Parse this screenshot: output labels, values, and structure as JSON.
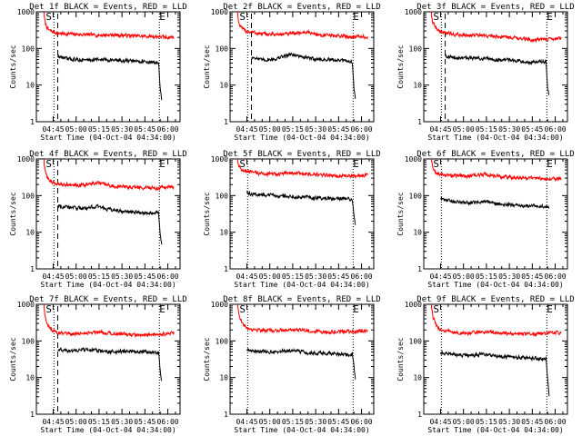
{
  "figure": {
    "xlabel": "Start Time (04-Oct-04 04:34:00)",
    "ylabel": "Counts/sec",
    "x_tick_labels": [
      "04:45",
      "05:00",
      "05:15",
      "05:30",
      "05:45",
      "06:00"
    ],
    "y_tick_labels": [
      "1",
      "10",
      "100",
      "1000"
    ],
    "start_marker": "S",
    "end_marker": "E"
  },
  "chart_data": [
    {
      "type": "line",
      "title": "Det 1f BLACK = Events, RED = LLD",
      "xlabel": "Start Time (04-Oct-04 04:34:00)",
      "ylabel": "Counts/sec",
      "ylim": [
        1,
        1000
      ],
      "yscale": "log",
      "x_unit": "minutes after 04:34:00",
      "xlim": [
        0,
        94
      ],
      "series": [
        {
          "color": "#000000",
          "x": [
            14,
            16,
            20,
            30,
            40,
            50,
            60,
            70,
            80,
            81,
            82
          ],
          "y": [
            60,
            58,
            52,
            48,
            50,
            48,
            46,
            44,
            40,
            8,
            4
          ]
        },
        {
          "color": "#ff0000",
          "x": [
            5,
            6,
            8,
            10,
            14,
            20,
            30,
            40,
            50,
            60,
            70,
            80,
            85,
            90
          ],
          "y": [
            800,
            450,
            320,
            290,
            260,
            250,
            240,
            230,
            235,
            225,
            215,
            210,
            200,
            205
          ]
        }
      ],
      "vlines": [
        {
          "x": 11.5,
          "style": "dotted"
        },
        {
          "x": 14,
          "style": "dashed"
        },
        {
          "x": 80.5,
          "style": "dotted"
        }
      ]
    },
    {
      "type": "line",
      "title": "Det 2f BLACK = Events, RED = LLD",
      "xlabel": "Start Time (04-Oct-04 04:34:00)",
      "ylabel": "Counts/sec",
      "ylim": [
        1,
        1000
      ],
      "yscale": "log",
      "x_unit": "minutes after 04:34:00",
      "xlim": [
        0,
        94
      ],
      "series": [
        {
          "color": "#000000",
          "x": [
            14,
            16,
            20,
            30,
            40,
            50,
            60,
            70,
            80,
            81,
            82
          ],
          "y": [
            55,
            58,
            48,
            52,
            70,
            55,
            50,
            48,
            44,
            8,
            4
          ]
        },
        {
          "color": "#ff0000",
          "x": [
            5,
            6,
            8,
            10,
            14,
            20,
            30,
            40,
            50,
            60,
            70,
            80,
            85,
            90
          ],
          "y": [
            800,
            450,
            340,
            300,
            280,
            250,
            240,
            250,
            280,
            230,
            220,
            210,
            210,
            200
          ]
        }
      ],
      "vlines": [
        {
          "x": 11.5,
          "style": "dotted"
        },
        {
          "x": 14,
          "style": "dashed"
        },
        {
          "x": 80.5,
          "style": "dotted"
        }
      ]
    },
    {
      "type": "line",
      "title": "Det 3f BLACK = Events, RED = LLD",
      "xlabel": "Start Time (04-Oct-04 04:34:00)",
      "ylabel": "Counts/sec",
      "ylim": [
        1,
        1000
      ],
      "yscale": "log",
      "x_unit": "minutes after 04:34:00",
      "xlim": [
        0,
        94
      ],
      "series": [
        {
          "color": "#000000",
          "x": [
            14,
            16,
            20,
            30,
            40,
            50,
            60,
            70,
            80,
            81,
            82
          ],
          "y": [
            65,
            60,
            55,
            55,
            52,
            50,
            48,
            42,
            44,
            8,
            5
          ]
        },
        {
          "color": "#ff0000",
          "x": [
            5,
            6,
            8,
            10,
            14,
            20,
            30,
            40,
            50,
            60,
            70,
            80,
            85,
            90
          ],
          "y": [
            800,
            500,
            350,
            300,
            270,
            240,
            230,
            220,
            210,
            200,
            170,
            180,
            185,
            190
          ]
        }
      ],
      "vlines": [
        {
          "x": 11.5,
          "style": "dotted"
        },
        {
          "x": 14,
          "style": "dashed"
        },
        {
          "x": 80.5,
          "style": "dotted"
        }
      ]
    },
    {
      "type": "line",
      "title": "Det 4f BLACK = Events, RED = LLD",
      "xlabel": "Start Time (04-Oct-04 04:34:00)",
      "ylabel": "Counts/sec",
      "ylim": [
        1,
        1000
      ],
      "yscale": "log",
      "x_unit": "minutes after 04:34:00",
      "xlim": [
        0,
        94
      ],
      "series": [
        {
          "color": "#000000",
          "x": [
            14,
            16,
            20,
            30,
            40,
            50,
            60,
            70,
            80,
            81,
            82
          ],
          "y": [
            55,
            52,
            48,
            45,
            50,
            40,
            36,
            34,
            35,
            8,
            5
          ]
        },
        {
          "color": "#ff0000",
          "x": [
            5,
            6,
            8,
            10,
            14,
            20,
            30,
            40,
            50,
            60,
            70,
            80,
            85,
            90
          ],
          "y": [
            800,
            400,
            280,
            230,
            210,
            200,
            190,
            220,
            180,
            170,
            165,
            160,
            170,
            175
          ]
        }
      ],
      "vlines": [
        {
          "x": 11.5,
          "style": "dotted"
        },
        {
          "x": 14,
          "style": "dashed"
        },
        {
          "x": 80.5,
          "style": "dotted"
        }
      ]
    },
    {
      "type": "line",
      "title": "Det 5f BLACK = Events, RED = LLD",
      "xlabel": "Start Time (04-Oct-04 04:34:00)",
      "ylabel": "Counts/sec",
      "ylim": [
        1,
        1000
      ],
      "yscale": "log",
      "x_unit": "minutes after 04:34:00",
      "xlim": [
        0,
        94
      ],
      "series": [
        {
          "color": "#000000",
          "x": [
            11,
            14,
            20,
            30,
            40,
            50,
            60,
            70,
            80,
            81,
            82
          ],
          "y": [
            120,
            110,
            105,
            100,
            95,
            90,
            85,
            82,
            80,
            30,
            15
          ]
        },
        {
          "color": "#ff0000",
          "x": [
            5,
            6,
            8,
            10,
            14,
            20,
            30,
            40,
            50,
            60,
            70,
            80,
            85,
            90
          ],
          "y": [
            900,
            600,
            500,
            460,
            430,
            400,
            380,
            420,
            390,
            360,
            340,
            345,
            350,
            360
          ]
        }
      ],
      "vlines": [
        {
          "x": 11.5,
          "style": "dotted"
        },
        {
          "x": 80.5,
          "style": "dotted"
        }
      ]
    },
    {
      "type": "line",
      "title": "Det 6f BLACK = Events, RED = LLD",
      "xlabel": "Start Time (04-Oct-04 04:34:00)",
      "ylabel": "Counts/sec",
      "ylim": [
        1,
        1000
      ],
      "yscale": "log",
      "x_unit": "minutes after 04:34:00",
      "xlim": [
        0,
        94
      ],
      "series": [
        {
          "color": "#000000",
          "x": [
            11,
            14,
            20,
            30,
            40,
            50,
            60,
            70,
            80,
            81,
            82
          ],
          "y": [
            80,
            75,
            68,
            62,
            70,
            58,
            55,
            52,
            50,
            48,
            48
          ]
        },
        {
          "color": "#ff0000",
          "x": [
            5,
            6,
            8,
            10,
            14,
            20,
            30,
            40,
            50,
            60,
            70,
            80,
            85,
            90
          ],
          "y": [
            900,
            550,
            420,
            380,
            360,
            350,
            340,
            380,
            330,
            310,
            300,
            290,
            290,
            295
          ]
        }
      ],
      "vlines": [
        {
          "x": 11.5,
          "style": "dotted"
        },
        {
          "x": 80.5,
          "style": "dotted"
        }
      ]
    },
    {
      "type": "line",
      "title": "Det 7f BLACK = Events, RED = LLD",
      "xlabel": "Start Time (04-Oct-04 04:34:00)",
      "ylabel": "Counts/sec",
      "ylim": [
        1,
        1000
      ],
      "yscale": "log",
      "x_unit": "minutes after 04:34:00",
      "xlim": [
        0,
        94
      ],
      "series": [
        {
          "color": "#000000",
          "x": [
            14,
            16,
            20,
            30,
            40,
            50,
            60,
            70,
            80,
            81,
            82
          ],
          "y": [
            55,
            60,
            52,
            58,
            54,
            50,
            52,
            50,
            48,
            15,
            8
          ]
        },
        {
          "color": "#ff0000",
          "x": [
            5,
            6,
            8,
            10,
            14,
            20,
            30,
            40,
            50,
            60,
            70,
            80,
            85,
            90
          ],
          "y": [
            800,
            400,
            260,
            200,
            170,
            150,
            160,
            180,
            160,
            150,
            140,
            150,
            155,
            160
          ]
        }
      ],
      "vlines": [
        {
          "x": 11.5,
          "style": "dotted"
        },
        {
          "x": 14,
          "style": "dashed"
        },
        {
          "x": 80.5,
          "style": "dotted"
        }
      ]
    },
    {
      "type": "line",
      "title": "Det 8f BLACK = Events, RED = LLD",
      "xlabel": "Start Time (04-Oct-04 04:34:00)",
      "ylabel": "Counts/sec",
      "ylim": [
        1,
        1000
      ],
      "yscale": "log",
      "x_unit": "minutes after 04:34:00",
      "xlim": [
        0,
        94
      ],
      "series": [
        {
          "color": "#000000",
          "x": [
            11,
            14,
            20,
            30,
            40,
            50,
            60,
            70,
            80,
            81,
            82
          ],
          "y": [
            58,
            55,
            52,
            50,
            55,
            48,
            46,
            44,
            42,
            20,
            8
          ]
        },
        {
          "color": "#ff0000",
          "x": [
            5,
            6,
            8,
            10,
            14,
            20,
            30,
            40,
            50,
            60,
            70,
            80,
            85,
            90
          ],
          "y": [
            900,
            500,
            300,
            240,
            210,
            200,
            190,
            210,
            190,
            180,
            175,
            180,
            185,
            190
          ]
        }
      ],
      "vlines": [
        {
          "x": 11.5,
          "style": "dotted"
        },
        {
          "x": 80.5,
          "style": "dotted"
        }
      ]
    },
    {
      "type": "line",
      "title": "Det 9f BLACK = Events, RED = LLD",
      "xlabel": "Start Time (04-Oct-04 04:34:00)",
      "ylabel": "Counts/sec",
      "ylim": [
        1,
        1000
      ],
      "yscale": "log",
      "x_unit": "minutes after 04:34:00",
      "xlim": [
        0,
        94
      ],
      "series": [
        {
          "color": "#000000",
          "x": [
            11,
            14,
            20,
            30,
            40,
            50,
            60,
            70,
            80,
            81,
            82
          ],
          "y": [
            48,
            45,
            42,
            40,
            44,
            38,
            36,
            34,
            32,
            10,
            3
          ]
        },
        {
          "color": "#ff0000",
          "x": [
            5,
            6,
            8,
            10,
            14,
            20,
            30,
            40,
            50,
            60,
            70,
            80,
            85,
            90
          ],
          "y": [
            900,
            450,
            280,
            210,
            190,
            170,
            160,
            180,
            165,
            155,
            150,
            160,
            165,
            170
          ]
        }
      ],
      "vlines": [
        {
          "x": 11.5,
          "style": "dotted"
        },
        {
          "x": 80.5,
          "style": "dotted"
        }
      ]
    }
  ]
}
